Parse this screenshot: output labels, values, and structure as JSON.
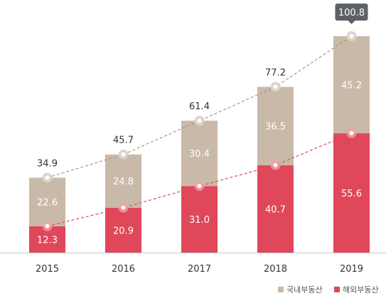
{
  "chart_data": {
    "type": "bar",
    "stacked": true,
    "categories": [
      "2015",
      "2016",
      "2017",
      "2018",
      "2019"
    ],
    "series": [
      {
        "name": "해외부동산",
        "color": "#E0475A",
        "values": [
          12.3,
          20.9,
          31.0,
          40.7,
          55.6
        ]
      },
      {
        "name": "국내부동산",
        "color": "#C9B9A8",
        "values": [
          22.6,
          24.8,
          30.4,
          36.5,
          45.2
        ]
      }
    ],
    "totals": [
      34.9,
      45.7,
      61.4,
      77.2,
      100.8
    ],
    "highlighted_total": "100.8",
    "trend_lines": {
      "overseas_color": "#E0475A",
      "total_color": "#B5936F",
      "style": "dashed"
    },
    "legend_order": [
      "국내부동산",
      "해외부동산"
    ],
    "legend_position": "bottom-right",
    "title": "",
    "xlabel": "",
    "ylabel": "",
    "ylim": [
      0,
      110
    ],
    "grid": false
  }
}
